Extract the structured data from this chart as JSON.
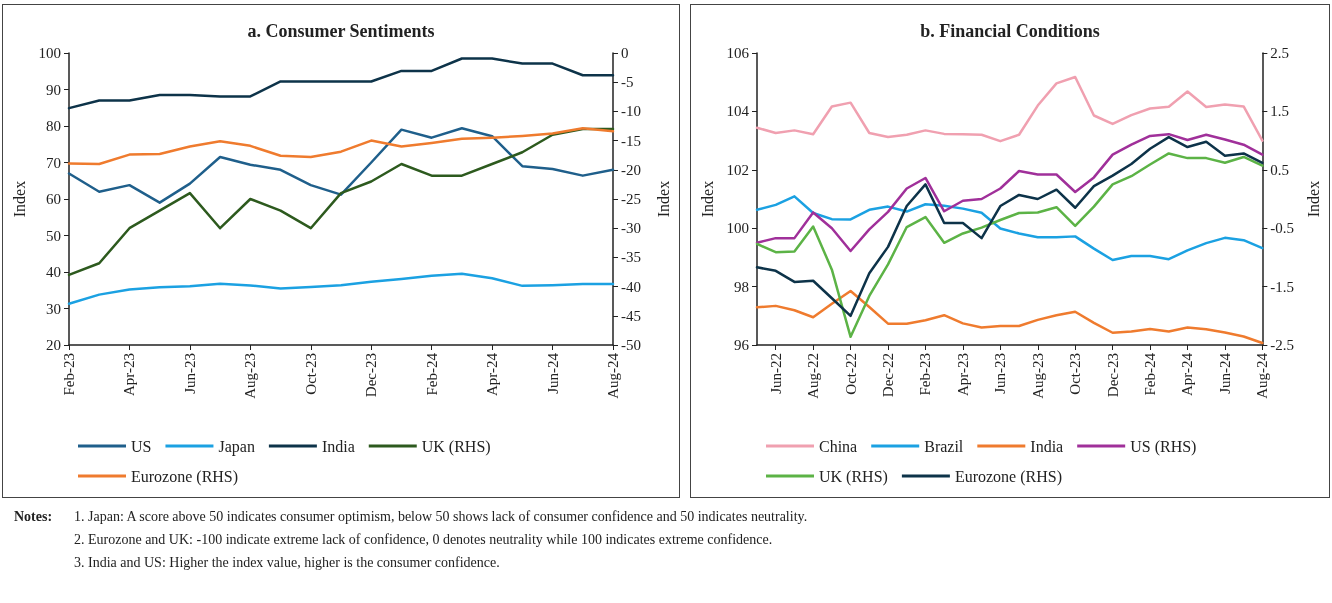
{
  "chart_data": [
    {
      "type": "line",
      "title": "a. Consumer Sentiments",
      "ylabel": "Index",
      "y2label": "Index",
      "categories": [
        "Feb-23",
        null,
        "Apr-23",
        null,
        "Jun-23",
        null,
        "Aug-23",
        null,
        "Oct-23",
        null,
        "Dec-23",
        null,
        "Feb-24",
        null,
        "Apr-24",
        null,
        "Jun-24",
        null,
        "Aug-24"
      ],
      "series": [
        {
          "name": "US",
          "color": "#1f5f8b",
          "values": [
            67,
            62,
            63.8,
            59,
            64.2,
            71.5,
            69.4,
            68,
            63.8,
            61.2,
            70,
            79,
            76.8,
            79.4,
            77.2,
            69,
            68.2,
            66.4,
            68
          ]
        },
        {
          "name": "Japan",
          "color": "#1ba1e2",
          "values": [
            31.3,
            33.8,
            35.2,
            35.8,
            36.1,
            36.8,
            36.3,
            35.5,
            35.9,
            36.4,
            37.3,
            38.1,
            39,
            39.5,
            38.3,
            36.2,
            36.4,
            36.7,
            36.7
          ]
        },
        {
          "name": "India",
          "color": "#0d3349",
          "values": [
            84.9,
            87,
            87,
            88.5,
            88.5,
            88.1,
            88.1,
            92.2,
            92.2,
            92.2,
            92.2,
            95.1,
            95.1,
            98.5,
            98.5,
            97.1,
            97.1,
            93.9,
            93.9
          ]
        },
        {
          "name": "UK (RHS)",
          "color": "#2d5a1e",
          "axis": "y2",
          "values": [
            -38,
            -36,
            -30,
            -27,
            -24,
            -30,
            -25,
            -27,
            -30,
            -24,
            -22,
            -19,
            -21,
            -21,
            -19,
            -17,
            -14,
            -13,
            -13
          ]
        },
        {
          "name": "Eurozone (RHS)",
          "color": "#ef7b2e",
          "axis": "y2",
          "values": [
            -18.9,
            -19,
            -17.4,
            -17.3,
            -16,
            -15.1,
            -15.9,
            -17.6,
            -17.8,
            -16.9,
            -15,
            -16,
            -15.4,
            -14.7,
            -14.5,
            -14.2,
            -13.8,
            -12.9,
            -13.4
          ]
        }
      ],
      "ylim": [
        20,
        100
      ],
      "yticks": [
        20,
        30,
        40,
        50,
        60,
        70,
        80,
        90,
        100
      ],
      "y2lim": [
        -50,
        0
      ],
      "y2ticks": [
        -50,
        -45,
        -40,
        -35,
        -30,
        -25,
        -20,
        -15,
        -10,
        -5,
        0
      ],
      "grid": false,
      "legend": "bottom",
      "marker": "none",
      "line_style": "solid",
      "annotations": [
        "Notes:",
        "1.  Japan: A score above 50 indicates consumer optimism, below 50 shows lack of consumer confidence and 50 indicates neutrality.",
        "2.  Eurozone and UK: -100 indicate extreme lack of confidence, 0 denotes neutrality while 100 indicates extreme confidence.",
        "3.  India and US: Higher the index value, higher is the consumer confidence."
      ]
    },
    {
      "type": "line",
      "title": "b. Financial Conditions",
      "ylabel": "Index",
      "y2label": "Index",
      "categories": [
        null,
        "Jun-22",
        null,
        "Aug-22",
        null,
        "Oct-22",
        null,
        "Dec-22",
        null,
        "Feb-23",
        null,
        "Apr-23",
        null,
        "Jun-23",
        null,
        "Aug-23",
        null,
        "Oct-23",
        null,
        "Dec-23",
        null,
        "Feb-24",
        null,
        "Apr-24",
        null,
        "Jun-24",
        null,
        "Aug-24"
      ],
      "series": [
        {
          "name": "China",
          "color": "#f0a0b0",
          "values": [
            103.44,
            103.26,
            103.35,
            103.22,
            104.17,
            104.3,
            103.26,
            103.12,
            103.2,
            103.35,
            103.23,
            103.22,
            103.2,
            102.98,
            103.2,
            104.2,
            104.96,
            105.18,
            103.86,
            103.57,
            103.87,
            104.1,
            104.16,
            104.68,
            104.15,
            104.24,
            104.17,
            103.0
          ]
        },
        {
          "name": "Brazil",
          "color": "#1ba1e2",
          "values": [
            100.63,
            100.8,
            101.09,
            100.52,
            100.31,
            100.3,
            100.63,
            100.74,
            100.57,
            100.82,
            100.77,
            100.67,
            100.53,
            99.99,
            99.82,
            99.69,
            99.69,
            99.72,
            99.3,
            98.91,
            99.05,
            99.05,
            98.94,
            99.24,
            99.49,
            99.67,
            99.59,
            99.32
          ]
        },
        {
          "name": "India",
          "color": "#ef7b2e",
          "values": [
            97.29,
            97.34,
            97.19,
            96.95,
            97.41,
            97.85,
            97.3,
            96.73,
            96.73,
            96.85,
            97.02,
            96.74,
            96.6,
            96.65,
            96.65,
            96.86,
            97.02,
            97.14,
            96.76,
            96.42,
            96.46,
            96.55,
            96.46,
            96.6,
            96.54,
            96.43,
            96.29,
            96.07
          ]
        },
        {
          "name": "US (RHS)",
          "color": "#a0309a",
          "axis": "y2",
          "values": [
            -0.75,
            -0.67,
            -0.67,
            -0.23,
            -0.5,
            -0.89,
            -0.52,
            -0.22,
            0.18,
            0.36,
            -0.21,
            -0.03,
            0,
            0.18,
            0.48,
            0.42,
            0.42,
            0.12,
            0.37,
            0.76,
            0.93,
            1.08,
            1.11,
            1.01,
            1.1,
            1.02,
            0.93,
            0.76
          ]
        },
        {
          "name": "UK (RHS)",
          "color": "#5cb346",
          "axis": "y2",
          "values": [
            -0.77,
            -0.91,
            -0.9,
            -0.47,
            -1.21,
            -2.36,
            -1.66,
            -1.12,
            -0.48,
            -0.31,
            -0.75,
            -0.59,
            -0.49,
            -0.36,
            -0.24,
            -0.23,
            -0.14,
            -0.46,
            -0.13,
            0.25,
            0.39,
            0.59,
            0.78,
            0.7,
            0.7,
            0.62,
            0.72,
            0.57
          ]
        },
        {
          "name": "Eurozone (RHS)",
          "color": "#0d3349",
          "axis": "y2",
          "values": [
            -1.17,
            -1.23,
            -1.42,
            -1.4,
            -1.7,
            -2.0,
            -1.27,
            -0.82,
            -0.12,
            0.25,
            -0.41,
            -0.41,
            -0.67,
            -0.12,
            0.07,
            0,
            0.16,
            -0.15,
            0.22,
            0.4,
            0.6,
            0.86,
            1.06,
            0.89,
            0.98,
            0.74,
            0.78,
            0.62
          ]
        }
      ],
      "ylim": [
        96,
        106
      ],
      "yticks": [
        96,
        98,
        100,
        102,
        104,
        106
      ],
      "y2lim": [
        -2.5,
        2.5
      ],
      "y2ticks": [
        -2.5,
        -1.5,
        -0.5,
        0.5,
        1.5,
        2.5
      ],
      "grid": false,
      "legend": "bottom",
      "marker": "none",
      "line_style": "solid"
    }
  ]
}
